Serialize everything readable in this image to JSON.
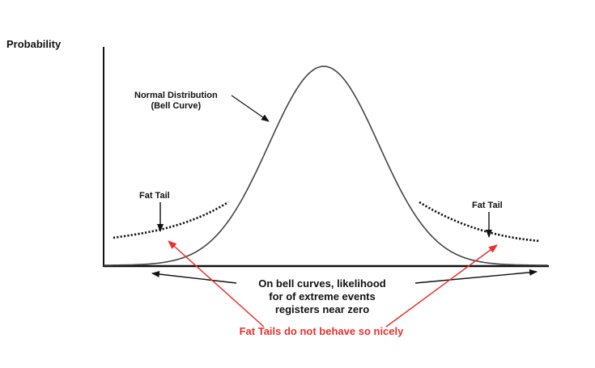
{
  "axis": {
    "y_label": "Probability"
  },
  "labels": {
    "normal_line1": "Normal Distribution",
    "normal_line2": "(Bell Curve)",
    "fat_tail_left": "Fat Tail",
    "fat_tail_right": "Fat Tail"
  },
  "note": {
    "line1": "On bell curves, likelihood",
    "line2": "for of extreme events",
    "line3": "registers near zero"
  },
  "warning": {
    "text": "Fat Tails do not behave so nicely",
    "color": "#e8312b"
  },
  "colors": {
    "ink": "#111111",
    "curve": "#444444"
  }
}
